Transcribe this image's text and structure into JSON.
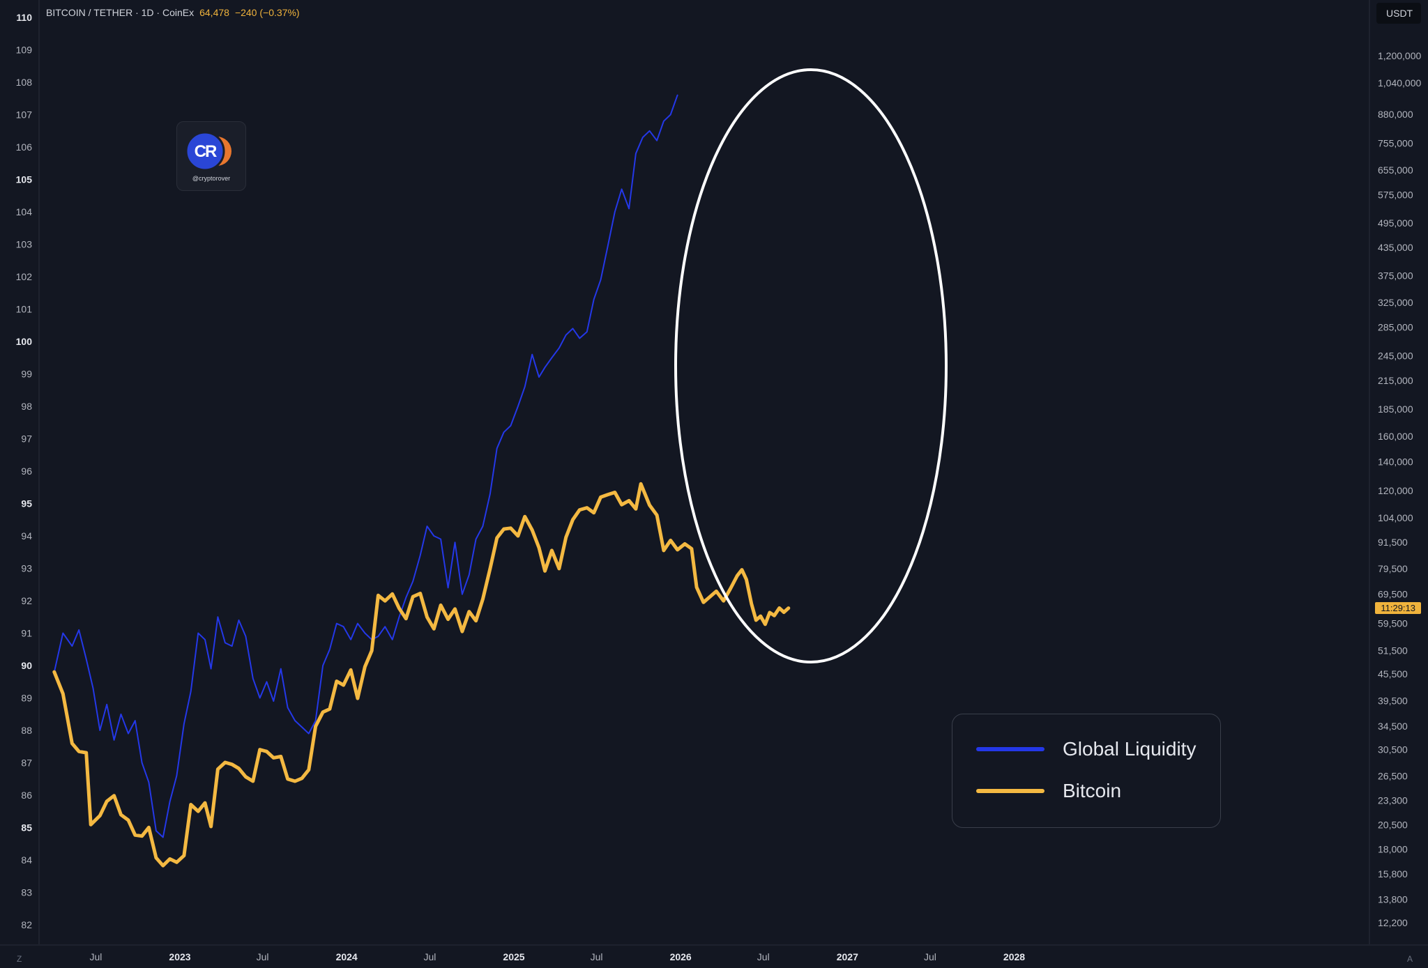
{
  "header": {
    "symbol": "BITCOIN / TETHER · 1D · CoinEx",
    "price": "64,478",
    "change": "−240 (−0.37%)"
  },
  "right_axis_unit": "USDT",
  "time_badge": "11:29:13",
  "logo": {
    "text": "CR",
    "caption": "@cryptorover"
  },
  "corners": {
    "left": "Z",
    "right": "A"
  },
  "legend": [
    {
      "label": "Global Liquidity",
      "color": "#2438e8"
    },
    {
      "label": "Bitcoin",
      "color": "#f4b942"
    }
  ],
  "colors": {
    "background": "#131722",
    "liquidity": "#2438e8",
    "bitcoin": "#f4b942",
    "grid_text": "#b2b5be",
    "ellipse": "#ffffff"
  },
  "chart_data": {
    "type": "line",
    "x_ticks": [
      "Jul",
      "2023",
      "Jul",
      "2024",
      "Jul",
      "2025",
      "Jul",
      "2026",
      "Jul",
      "2027",
      "Jul",
      "2028"
    ],
    "x_tick_bold": [
      false,
      true,
      false,
      true,
      false,
      true,
      false,
      true,
      false,
      true,
      false,
      true
    ],
    "left_axis": {
      "ticks": [
        110,
        109,
        108,
        107,
        106,
        105,
        104,
        103,
        102,
        101,
        100,
        99,
        98,
        97,
        96,
        95,
        94,
        93,
        92,
        91,
        90,
        89,
        88,
        87,
        86,
        85,
        84,
        83,
        82
      ],
      "bold": [
        110,
        105,
        100,
        95,
        90,
        85
      ],
      "range": [
        82,
        110
      ]
    },
    "right_axis": {
      "scale": "log",
      "ticks": [
        "1,200,000",
        "1,040,000",
        "880,000",
        "755,000",
        "655,000",
        "575,000",
        "495,000",
        "435,000",
        "375,000",
        "325,000",
        "285,000",
        "245,000",
        "215,000",
        "185,000",
        "160,000",
        "140,000",
        "120,000",
        "104,000",
        "91,500",
        "79,500",
        "69,500",
        "59,500",
        "51,500",
        "45,500",
        "39,500",
        "34,500",
        "30,500",
        "26,500",
        "23,300",
        "20,500",
        "18,000",
        "15,800",
        "13,800",
        "12,200"
      ]
    },
    "series": [
      {
        "name": "Global Liquidity",
        "axis": "left",
        "points": [
          [
            "2022-04-01",
            89.8
          ],
          [
            "2022-04-20",
            91.0
          ],
          [
            "2022-05-10",
            90.6
          ],
          [
            "2022-05-25",
            91.1
          ],
          [
            "2022-06-10",
            90.2
          ],
          [
            "2022-06-25",
            89.3
          ],
          [
            "2022-07-10",
            88.0
          ],
          [
            "2022-07-25",
            88.8
          ],
          [
            "2022-08-10",
            87.7
          ],
          [
            "2022-08-25",
            88.5
          ],
          [
            "2022-09-10",
            87.9
          ],
          [
            "2022-09-25",
            88.3
          ],
          [
            "2022-10-10",
            87.0
          ],
          [
            "2022-10-25",
            86.4
          ],
          [
            "2022-11-10",
            84.9
          ],
          [
            "2022-11-25",
            84.7
          ],
          [
            "2022-12-10",
            85.8
          ],
          [
            "2022-12-25",
            86.6
          ],
          [
            "2023-01-10",
            88.2
          ],
          [
            "2023-01-25",
            89.2
          ],
          [
            "2023-02-10",
            91.0
          ],
          [
            "2023-02-25",
            90.8
          ],
          [
            "2023-03-10",
            89.9
          ],
          [
            "2023-03-25",
            91.5
          ],
          [
            "2023-04-10",
            90.7
          ],
          [
            "2023-04-25",
            90.6
          ],
          [
            "2023-05-10",
            91.4
          ],
          [
            "2023-05-25",
            90.9
          ],
          [
            "2023-06-10",
            89.6
          ],
          [
            "2023-06-25",
            89.0
          ],
          [
            "2023-07-10",
            89.5
          ],
          [
            "2023-07-25",
            88.9
          ],
          [
            "2023-08-10",
            89.9
          ],
          [
            "2023-08-25",
            88.7
          ],
          [
            "2023-09-10",
            88.3
          ],
          [
            "2023-09-25",
            88.1
          ],
          [
            "2023-10-10",
            87.9
          ],
          [
            "2023-10-25",
            88.3
          ],
          [
            "2023-11-10",
            90.0
          ],
          [
            "2023-11-25",
            90.5
          ],
          [
            "2023-12-10",
            91.3
          ],
          [
            "2023-12-25",
            91.2
          ],
          [
            "2024-01-10",
            90.8
          ],
          [
            "2024-01-25",
            91.3
          ],
          [
            "2024-02-10",
            91.0
          ],
          [
            "2024-02-25",
            90.8
          ],
          [
            "2024-03-10",
            90.9
          ],
          [
            "2024-03-25",
            91.2
          ],
          [
            "2024-04-10",
            90.8
          ],
          [
            "2024-04-25",
            91.5
          ],
          [
            "2024-05-10",
            92.1
          ],
          [
            "2024-05-25",
            92.6
          ],
          [
            "2024-06-10",
            93.4
          ],
          [
            "2024-06-25",
            94.3
          ],
          [
            "2024-07-10",
            94.0
          ],
          [
            "2024-07-25",
            93.9
          ],
          [
            "2024-08-10",
            92.4
          ],
          [
            "2024-08-25",
            93.8
          ],
          [
            "2024-09-10",
            92.2
          ],
          [
            "2024-09-25",
            92.8
          ],
          [
            "2024-10-10",
            93.9
          ],
          [
            "2024-10-25",
            94.3
          ],
          [
            "2024-11-10",
            95.3
          ],
          [
            "2024-11-25",
            96.7
          ],
          [
            "2024-12-10",
            97.2
          ],
          [
            "2024-12-25",
            97.4
          ],
          [
            "2025-01-10",
            98.0
          ],
          [
            "2025-01-25",
            98.6
          ],
          [
            "2025-02-10",
            99.6
          ],
          [
            "2025-02-25",
            98.9
          ],
          [
            "2025-03-10",
            99.2
          ],
          [
            "2025-03-25",
            99.5
          ],
          [
            "2025-04-10",
            99.8
          ],
          [
            "2025-04-25",
            100.2
          ],
          [
            "2025-05-10",
            100.4
          ],
          [
            "2025-05-25",
            100.1
          ],
          [
            "2025-06-10",
            100.3
          ],
          [
            "2025-06-25",
            101.3
          ],
          [
            "2025-07-10",
            101.9
          ],
          [
            "2025-07-25",
            102.9
          ],
          [
            "2025-08-10",
            104.0
          ],
          [
            "2025-08-25",
            104.7
          ],
          [
            "2025-09-10",
            104.1
          ],
          [
            "2025-09-25",
            105.8
          ],
          [
            "2025-10-10",
            106.3
          ],
          [
            "2025-10-25",
            106.5
          ],
          [
            "2025-11-10",
            106.2
          ],
          [
            "2025-11-25",
            106.8
          ],
          [
            "2025-12-10",
            107.0
          ],
          [
            "2025-12-25",
            107.6
          ]
        ]
      },
      {
        "name": "Bitcoin",
        "axis": "right",
        "points": [
          [
            "2022-04-01",
            46000
          ],
          [
            "2022-04-20",
            41000
          ],
          [
            "2022-05-10",
            31500
          ],
          [
            "2022-05-25",
            30200
          ],
          [
            "2022-06-10",
            30000
          ],
          [
            "2022-06-20",
            20500
          ],
          [
            "2022-07-10",
            21500
          ],
          [
            "2022-07-25",
            23200
          ],
          [
            "2022-08-10",
            23900
          ],
          [
            "2022-08-25",
            21600
          ],
          [
            "2022-09-10",
            21000
          ],
          [
            "2022-09-25",
            19400
          ],
          [
            "2022-10-10",
            19300
          ],
          [
            "2022-10-25",
            20200
          ],
          [
            "2022-11-10",
            17200
          ],
          [
            "2022-11-25",
            16500
          ],
          [
            "2022-12-10",
            17100
          ],
          [
            "2022-12-25",
            16800
          ],
          [
            "2023-01-10",
            17400
          ],
          [
            "2023-01-25",
            22800
          ],
          [
            "2023-02-10",
            22000
          ],
          [
            "2023-02-25",
            23000
          ],
          [
            "2023-03-10",
            20300
          ],
          [
            "2023-03-25",
            27500
          ],
          [
            "2023-04-10",
            28500
          ],
          [
            "2023-04-25",
            28200
          ],
          [
            "2023-05-10",
            27600
          ],
          [
            "2023-05-25",
            26400
          ],
          [
            "2023-06-10",
            25800
          ],
          [
            "2023-06-25",
            30500
          ],
          [
            "2023-07-10",
            30200
          ],
          [
            "2023-07-25",
            29200
          ],
          [
            "2023-08-10",
            29400
          ],
          [
            "2023-08-25",
            26100
          ],
          [
            "2023-09-10",
            25800
          ],
          [
            "2023-09-25",
            26200
          ],
          [
            "2023-10-10",
            27400
          ],
          [
            "2023-10-25",
            34500
          ],
          [
            "2023-11-10",
            37200
          ],
          [
            "2023-11-25",
            37800
          ],
          [
            "2023-12-10",
            43800
          ],
          [
            "2023-12-25",
            42900
          ],
          [
            "2024-01-10",
            46500
          ],
          [
            "2024-01-25",
            40000
          ],
          [
            "2024-02-10",
            47300
          ],
          [
            "2024-02-25",
            51500
          ],
          [
            "2024-03-10",
            69000
          ],
          [
            "2024-03-25",
            67000
          ],
          [
            "2024-04-10",
            69500
          ],
          [
            "2024-04-25",
            64400
          ],
          [
            "2024-05-10",
            61000
          ],
          [
            "2024-05-25",
            68500
          ],
          [
            "2024-06-10",
            69700
          ],
          [
            "2024-06-25",
            61500
          ],
          [
            "2024-07-10",
            57800
          ],
          [
            "2024-07-25",
            65500
          ],
          [
            "2024-08-10",
            60800
          ],
          [
            "2024-08-25",
            64200
          ],
          [
            "2024-09-10",
            57000
          ],
          [
            "2024-09-25",
            63300
          ],
          [
            "2024-10-10",
            60300
          ],
          [
            "2024-10-25",
            67600
          ],
          [
            "2024-11-10",
            79500
          ],
          [
            "2024-11-25",
            93500
          ],
          [
            "2024-12-10",
            98000
          ],
          [
            "2024-12-25",
            98500
          ],
          [
            "2025-01-10",
            94500
          ],
          [
            "2025-01-25",
            104700
          ],
          [
            "2025-02-10",
            97500
          ],
          [
            "2025-02-25",
            88800
          ],
          [
            "2025-03-10",
            78500
          ],
          [
            "2025-03-25",
            87500
          ],
          [
            "2025-04-10",
            79500
          ],
          [
            "2025-04-25",
            93800
          ],
          [
            "2025-05-10",
            103000
          ],
          [
            "2025-05-25",
            108500
          ],
          [
            "2025-06-10",
            109700
          ],
          [
            "2025-06-25",
            106800
          ],
          [
            "2025-07-10",
            116000
          ],
          [
            "2025-07-25",
            117500
          ],
          [
            "2025-08-10",
            119000
          ],
          [
            "2025-08-25",
            111500
          ],
          [
            "2025-09-10",
            113900
          ],
          [
            "2025-09-25",
            109000
          ],
          [
            "2025-10-06",
            124500
          ],
          [
            "2025-10-25",
            111200
          ],
          [
            "2025-11-10",
            105500
          ],
          [
            "2025-11-25",
            87500
          ],
          [
            "2025-12-10",
            92300
          ],
          [
            "2025-12-25",
            87800
          ],
          [
            "2026-01-10",
            90600
          ],
          [
            "2026-01-25",
            88300
          ],
          [
            "2026-02-05",
            72000
          ],
          [
            "2026-02-20",
            66500
          ],
          [
            "2026-03-05",
            68300
          ],
          [
            "2026-03-20",
            70500
          ],
          [
            "2026-04-05",
            67000
          ],
          [
            "2026-04-20",
            71500
          ],
          [
            "2026-05-05",
            76600
          ],
          [
            "2026-05-15",
            79000
          ],
          [
            "2026-05-25",
            75000
          ],
          [
            "2026-06-05",
            66000
          ],
          [
            "2026-06-15",
            60500
          ],
          [
            "2026-06-25",
            61800
          ],
          [
            "2026-07-05",
            59200
          ],
          [
            "2026-07-15",
            63000
          ],
          [
            "2026-07-25",
            62000
          ],
          [
            "2026-08-05",
            64500
          ],
          [
            "2026-08-15",
            63100
          ],
          [
            "2026-08-25",
            64478
          ]
        ]
      }
    ],
    "annotation": {
      "shape": "ellipse"
    }
  }
}
